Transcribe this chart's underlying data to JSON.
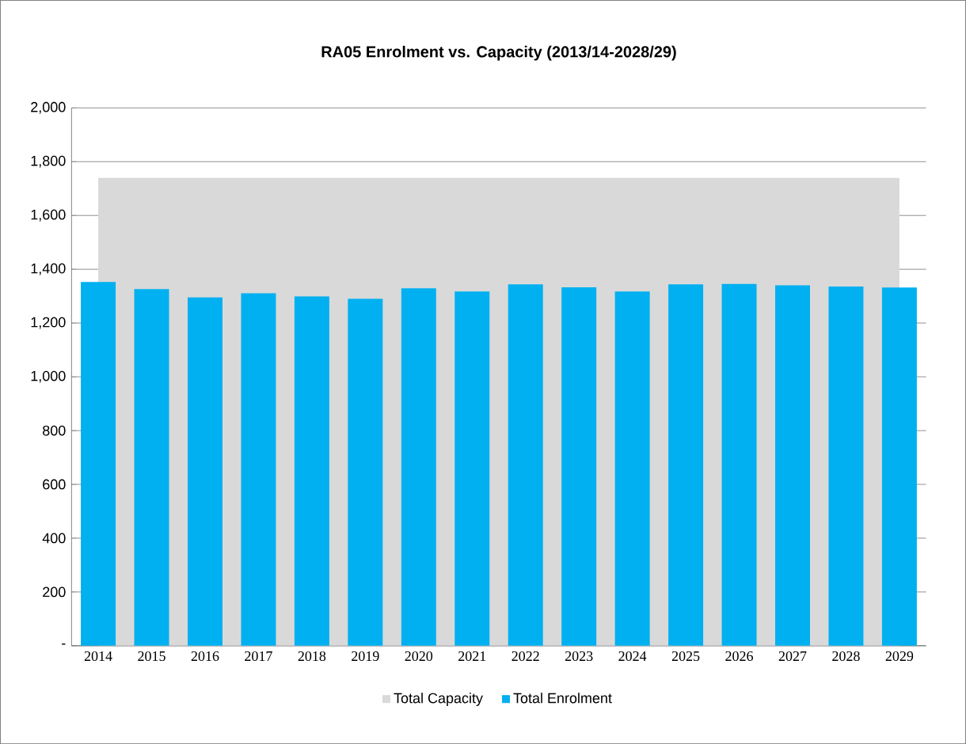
{
  "chart_data": {
    "type": "bar",
    "title": "RA05 Enrolment vs. Capacity (2013/14-2028/29)",
    "categories": [
      "2014",
      "2015",
      "2016",
      "2017",
      "2018",
      "2019",
      "2020",
      "2021",
      "2022",
      "2023",
      "2024",
      "2025",
      "2026",
      "2027",
      "2028",
      "2029"
    ],
    "series": [
      {
        "name": "Total Capacity",
        "type": "area",
        "color": "#d9d9d9",
        "values": [
          1740,
          1740,
          1740,
          1740,
          1740,
          1740,
          1740,
          1740,
          1740,
          1740,
          1740,
          1740,
          1740,
          1740,
          1740,
          1740
        ]
      },
      {
        "name": "Total Enrolment",
        "type": "bar",
        "color": "#00b0f0",
        "values": [
          1353,
          1326,
          1295,
          1311,
          1299,
          1290,
          1329,
          1317,
          1344,
          1333,
          1317,
          1344,
          1345,
          1340,
          1336,
          1332
        ]
      }
    ],
    "ylim": [
      0,
      2000
    ],
    "yticks": [
      {
        "value": 0,
        "label": "-"
      },
      200,
      400,
      600,
      800,
      {
        "value": 1000,
        "label": "1,000"
      },
      {
        "value": 1200,
        "label": "1,200"
      },
      {
        "value": 1400,
        "label": "1,400"
      },
      {
        "value": 1600,
        "label": "1,600"
      },
      {
        "value": 1800,
        "label": "1,800"
      },
      {
        "value": 2000,
        "label": "2,000"
      }
    ],
    "grid": "y",
    "legend": "bottom"
  }
}
